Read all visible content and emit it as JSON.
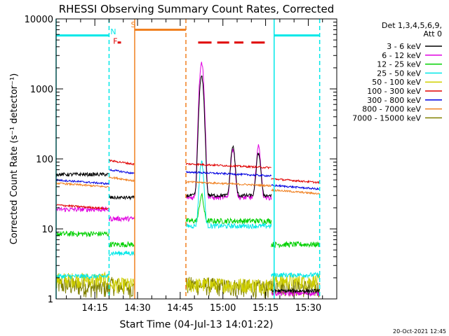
{
  "chart_data": {
    "type": "line",
    "title": "RHESSI Observing Summary Count Rates, Corrected",
    "xlabel": "Start Time (04-Jul-13 14:01:22)",
    "ylabel": "Corrected Count Rate (s⁻¹ detector⁻¹)",
    "yscale": "log",
    "ylim": [
      1,
      10000
    ],
    "xlim": [
      "14:01:22",
      "15:40:00"
    ],
    "x_unit": "minutes since 14:00",
    "xlim_minutes": [
      1.4,
      100
    ],
    "x_ticks": [
      {
        "minute": 15,
        "label": "14:15"
      },
      {
        "minute": 30,
        "label": "14:30"
      },
      {
        "minute": 45,
        "label": "14:45"
      },
      {
        "minute": 60,
        "label": "15:00"
      },
      {
        "minute": 75,
        "label": "15:15"
      },
      {
        "minute": 90,
        "label": "15:30"
      }
    ],
    "y_ticks": [
      {
        "value": 1,
        "label": "1"
      },
      {
        "value": 10,
        "label": "10"
      },
      {
        "value": 100,
        "label": "100"
      },
      {
        "value": 1000,
        "label": "1000"
      },
      {
        "value": 10000,
        "label": "10000"
      }
    ],
    "legend": {
      "placement": "right",
      "header1": "Det 1,3,4,5,6,9,",
      "header2": "Att 0",
      "entries": [
        {
          "label": "3 - 6 keV",
          "color": "#000000"
        },
        {
          "label": "6 - 12 keV",
          "color": "#e000e0"
        },
        {
          "label": "12 - 25 keV",
          "color": "#00d000"
        },
        {
          "label": "25 - 50 keV",
          "color": "#00e8e8"
        },
        {
          "label": "50 - 100 keV",
          "color": "#d0d000"
        },
        {
          "label": "100 - 300 keV",
          "color": "#e00000"
        },
        {
          "label": "300 - 800 keV",
          "color": "#0000e0"
        },
        {
          "label": "800 - 7000 keV",
          "color": "#f08020"
        },
        {
          "label": "7000 - 15000 keV",
          "color": "#808000"
        }
      ]
    },
    "annotations": [
      {
        "text": "N",
        "minute": 21.5,
        "value": 6000,
        "color": "#00e8e8"
      },
      {
        "text": "F",
        "minute": 22.2,
        "value": 4400,
        "color": "#e00000"
      },
      {
        "text": "S",
        "minute": 28.5,
        "value": 7600,
        "color": "#f08020"
      }
    ],
    "timestamp": "20-Oct-2021 12:45",
    "segments": [
      {
        "start": 1.4,
        "end": 20,
        "base": [
          60,
          19,
          8.5,
          2.1,
          1.9,
          22,
          50,
          45,
          1.6
        ]
      },
      {
        "start": 20,
        "end": 29,
        "base": [
          28,
          14,
          6,
          4.5,
          1.6,
          95,
          70,
          55,
          1.6
        ]
      },
      {
        "start": 47,
        "end": 77,
        "base": [
          30,
          28,
          13,
          11,
          1.6,
          85,
          65,
          47,
          1.6
        ]
      },
      {
        "start": 77,
        "end": 94,
        "base": [
          1.3,
          1.2,
          6,
          2.2,
          1.8,
          52,
          42,
          36,
          1.6
        ]
      }
    ],
    "flare_peaks": [
      {
        "minute": 52.5,
        "values": [
          1500,
          2400,
          30,
          90
        ]
      },
      {
        "minute": 63.5,
        "values": [
          150,
          140
        ]
      },
      {
        "minute": 72.5,
        "values": [
          120,
          150
        ]
      }
    ],
    "flags": [
      {
        "name": "night",
        "color": "#00e8e8",
        "intervals": [
          [
            1.4,
            20.0
          ],
          [
            78.0,
            94.0
          ]
        ],
        "value": 5800
      },
      {
        "name": "saa",
        "color": "#f08020",
        "intervals": [
          [
            29.0,
            47.0
          ]
        ],
        "value": 7000
      },
      {
        "name": "flare",
        "color": "#e00000",
        "intervals": [
          [
            23.0,
            24.2
          ],
          [
            51.3,
            56.0
          ],
          [
            58.0,
            62.2
          ],
          [
            64.0,
            67.2
          ],
          [
            70.0,
            74.7
          ]
        ],
        "value": 4600
      }
    ],
    "vertical_lines": [
      {
        "minute": 1.4,
        "color": "#00e8e8",
        "style": "solid"
      },
      {
        "minute": 20.0,
        "color": "#00e8e8",
        "style": "dashed"
      },
      {
        "minute": 29.0,
        "color": "#f08020",
        "style": "solid"
      },
      {
        "minute": 47.0,
        "color": "#f08020",
        "style": "dashed"
      },
      {
        "minute": 78.0,
        "color": "#00e8e8",
        "style": "solid"
      },
      {
        "minute": 94.0,
        "color": "#00e8e8",
        "style": "dashed"
      }
    ]
  }
}
